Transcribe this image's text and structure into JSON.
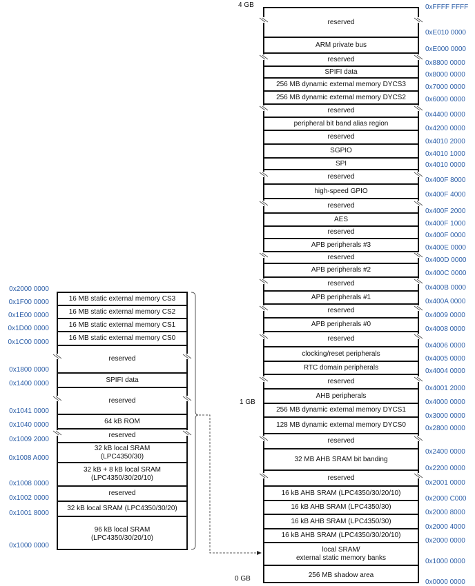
{
  "gb_labels": {
    "top": "4 GB",
    "mid": "1 GB",
    "bottom": "0 GB"
  },
  "main_map": {
    "regions": [
      {
        "label": "reserved",
        "break": true
      },
      {
        "label": "ARM private bus",
        "break": false
      },
      {
        "label": "reserved",
        "break": true
      },
      {
        "label": "SPIFI data",
        "break": false
      },
      {
        "label": "256 MB dynamic external memory DYCS3",
        "break": false
      },
      {
        "label": "256 MB dynamic external memory DYCS2",
        "break": false
      },
      {
        "label": "reserved",
        "break": true
      },
      {
        "label": "peripheral bit band alias region",
        "break": false
      },
      {
        "label": "reserved",
        "break": false
      },
      {
        "label": "SGPIO",
        "break": false
      },
      {
        "label": "SPI",
        "break": false
      },
      {
        "label": "reserved",
        "break": true
      },
      {
        "label": "high-speed GPIO",
        "break": false
      },
      {
        "label": "reserved",
        "break": true
      },
      {
        "label": "AES",
        "break": false
      },
      {
        "label": "reserved",
        "break": false
      },
      {
        "label": "APB peripherals  #3",
        "break": false
      },
      {
        "label": "reserved",
        "break": true
      },
      {
        "label": "APB peripherals  #2",
        "break": false
      },
      {
        "label": "reserved",
        "break": true
      },
      {
        "label": "APB peripherals #1",
        "break": false
      },
      {
        "label": "reserved",
        "break": true
      },
      {
        "label": "APB peripherals #0",
        "break": false
      },
      {
        "label": "reserved",
        "break": true
      },
      {
        "label": "clocking/reset peripherals",
        "break": false
      },
      {
        "label": "RTC domain peripherals",
        "break": false
      },
      {
        "label": "reserved",
        "break": true
      },
      {
        "label": "AHB peripherals",
        "break": false
      },
      {
        "label": "256 MB dynamic external memory DYCS1",
        "break": false
      },
      {
        "label": "128 MB dynamic external memory DYCS0",
        "break": false
      },
      {
        "label": "reserved",
        "break": true
      },
      {
        "label": "32 MB AHB SRAM bit  banding",
        "break": false
      },
      {
        "label": "reserved",
        "break": true
      },
      {
        "label": "16 kB AHB SRAM (LPC4350/30/20/10)",
        "break": false
      },
      {
        "label": "16 kB AHB SRAM (LPC4350/30)",
        "break": false
      },
      {
        "label": "16 kB AHB SRAM (LPC4350/30)",
        "break": false
      },
      {
        "label": "16 kB AHB SRAM (LPC4350/30/20/10)",
        "break": false
      },
      {
        "label": "local SRAM/\nexternal static memory banks",
        "break": false
      },
      {
        "label": "256 MB shadow area",
        "break": false
      }
    ],
    "addresses": [
      "0xFFFF FFFF",
      "0xE010 0000",
      "0xE000 0000",
      "0x8800 0000",
      "0x8000 0000",
      "0x7000 0000",
      "0x6000 0000",
      "0x4400 0000",
      "0x4200 0000",
      "0x4010 2000",
      "0x4010 1000",
      "0x4010 0000",
      "0x400F 8000",
      "0x400F 4000",
      "0x400F 2000",
      "0x400F 1000",
      "0x400F 0000",
      "0x400E 0000",
      "0x400D 0000",
      "0x400C 0000",
      "0x400B 0000",
      "0x400A 0000",
      "0x4009 0000",
      "0x4008 0000",
      "0x4006 0000",
      "0x4005 0000",
      "0x4004 0000",
      "0x4001 2000",
      "0x4000 0000",
      "0x3000 0000",
      "0x2800 0000",
      "0x2400 0000",
      "0x2200 0000",
      "0x2001 0000",
      "0x2000 C000",
      "0x2000 8000",
      "0x2000 4000",
      "0x2000 0000",
      "0x1000 0000",
      "0x0000 0000"
    ]
  },
  "detail_map": {
    "regions": [
      {
        "label": "16 MB  static external memory CS3",
        "break": false
      },
      {
        "label": "16 MB  static external memory CS2",
        "break": false
      },
      {
        "label": "16 MB  static external memory CS1",
        "break": false
      },
      {
        "label": "16 MB  static external memory CS0",
        "break": false
      },
      {
        "label": "reserved",
        "break": true
      },
      {
        "label": "SPIFI data",
        "break": false
      },
      {
        "label": "reserved",
        "break": true
      },
      {
        "label": "64 kB ROM",
        "break": false
      },
      {
        "label": "reserved",
        "break": true
      },
      {
        "label": "32 kB local SRAM\n(LPC4350/30)",
        "break": false
      },
      {
        "label": "32 kB  + 8 kB local SRAM\n(LPC4350/30/20/10)",
        "break": false
      },
      {
        "label": "reserved",
        "break": false
      },
      {
        "label": "32 kB  local SRAM (LPC4350/30/20)",
        "break": false
      },
      {
        "label": "96 kB  local SRAM\n(LPC4350/30/20/10)",
        "break": false
      }
    ],
    "addresses": [
      "0x2000 0000",
      "0x1F00 0000",
      "0x1E00 0000",
      "0x1D00 0000",
      "0x1C00 0000",
      "0x1800 0000",
      "0x1400 0000",
      "0x1041 0000",
      "0x1040 0000",
      "0x1009 2000",
      "0x1008 A000",
      "0x1008 0000",
      "0x1002 0000",
      "0x1001 8000",
      "0x1000 0000"
    ]
  },
  "colors": {
    "address_text": "#2d5fa8",
    "lines": "#111111"
  }
}
